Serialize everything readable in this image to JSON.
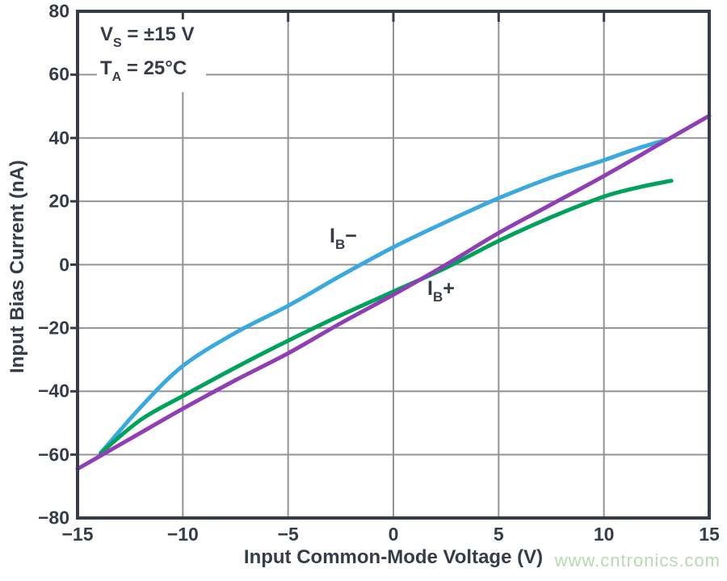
{
  "colors": {
    "axis": "#363d49",
    "grid": "#919398",
    "background": "#ffffff",
    "ib_minus_blue": "#3BA8DE",
    "ib_plus_green": "#00A15B",
    "unlabeled_purple": "#8F3FB3",
    "watermark_green": "#b7dbb1"
  },
  "annotation": {
    "line1": {
      "main": "V",
      "sub": "S",
      "rest": " = ±15 V"
    },
    "line2": {
      "main": "T",
      "sub": "A",
      "rest": " = 25°C"
    }
  },
  "curve_labels": {
    "ib_minus": {
      "main": "I",
      "sub": "B",
      "suffix": "−"
    },
    "ib_plus": {
      "main": "I",
      "sub": "B",
      "suffix": "+"
    }
  },
  "watermark": {
    "text": "www.cntronics.com"
  },
  "chart_data": {
    "type": "line",
    "title": "",
    "xlabel": "Input Common-Mode Voltage  (V)",
    "ylabel": "Input Bias Current (nA)",
    "xlim": [
      -15,
      15
    ],
    "ylim": [
      -80,
      80
    ],
    "xticks": [
      -15,
      -10,
      -5,
      0,
      5,
      10,
      15
    ],
    "yticks": [
      -80,
      -60,
      -40,
      -20,
      0,
      20,
      40,
      60,
      80
    ],
    "grid": true,
    "legend_position": "none",
    "annotations": [
      "VS = ±15 V",
      "TA = 25°C",
      "IB−",
      "IB+"
    ],
    "series": [
      {
        "name": "IB−",
        "color": "#3BA8DE",
        "points": [
          [
            -13.9,
            -59.5
          ],
          [
            -12,
            -45
          ],
          [
            -10,
            -32
          ],
          [
            -7.5,
            -21.5
          ],
          [
            -5,
            -13
          ],
          [
            -2.5,
            -3.5
          ],
          [
            0,
            5.5
          ],
          [
            2.5,
            13.5
          ],
          [
            5,
            21
          ],
          [
            7.5,
            27.5
          ],
          [
            10,
            33
          ],
          [
            11.5,
            36.5
          ],
          [
            13,
            39.5
          ]
        ]
      },
      {
        "name": "IB+",
        "color": "#00A15B",
        "points": [
          [
            -13.9,
            -59.5
          ],
          [
            -12,
            -49
          ],
          [
            -10,
            -41.5
          ],
          [
            -7.5,
            -32.5
          ],
          [
            -5,
            -24
          ],
          [
            -2.5,
            -16
          ],
          [
            0,
            -8.5
          ],
          [
            2.5,
            -1
          ],
          [
            5,
            7.5
          ],
          [
            7.5,
            15
          ],
          [
            10,
            21.5
          ],
          [
            11.7,
            24.5
          ],
          [
            13.2,
            26.5
          ]
        ]
      },
      {
        "name": "",
        "color": "#8F3FB3",
        "points": [
          [
            -15,
            -64.5
          ],
          [
            -12.5,
            -55
          ],
          [
            -10,
            -45.5
          ],
          [
            -7.5,
            -36.5
          ],
          [
            -5,
            -28
          ],
          [
            -2.5,
            -18.5
          ],
          [
            0,
            -9.5
          ],
          [
            2.5,
            0
          ],
          [
            5,
            10
          ],
          [
            7.5,
            19
          ],
          [
            10,
            28
          ],
          [
            12.5,
            37.5
          ],
          [
            15,
            47
          ]
        ]
      }
    ]
  }
}
